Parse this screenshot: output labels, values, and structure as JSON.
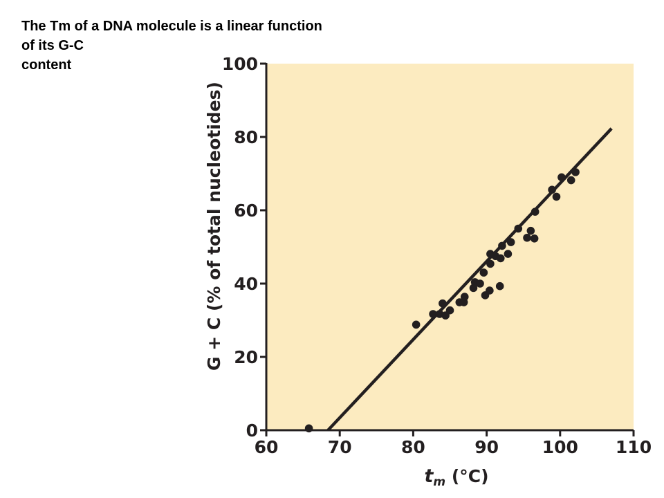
{
  "slide": {
    "title_lines": [
      "The Tm of a DNA molecule is a linear function",
      "of its G-C",
      "content"
    ]
  },
  "colors": {
    "plot_background": "#fcebc0",
    "ink": "#231f20"
  },
  "chart_data": {
    "type": "scatter",
    "title": "",
    "xlabel_main": "t",
    "xlabel_sub": "m",
    "xlabel_unit": " (°C)",
    "ylabel": "G + C (% of total nucleotides)",
    "xlim": [
      60,
      110
    ],
    "ylim": [
      0,
      100
    ],
    "x_ticks": [
      60,
      70,
      80,
      90,
      100,
      110
    ],
    "y_ticks": [
      0,
      20,
      40,
      60,
      80,
      100
    ],
    "grid": false,
    "points": [
      {
        "x": 65.8,
        "y": 0.5
      },
      {
        "x": 80.4,
        "y": 28.8
      },
      {
        "x": 82.7,
        "y": 31.7
      },
      {
        "x": 83.6,
        "y": 31.7
      },
      {
        "x": 84.0,
        "y": 34.6
      },
      {
        "x": 84.4,
        "y": 31.3
      },
      {
        "x": 85.0,
        "y": 32.7
      },
      {
        "x": 86.3,
        "y": 34.9
      },
      {
        "x": 86.9,
        "y": 34.9
      },
      {
        "x": 87.0,
        "y": 36.4
      },
      {
        "x": 88.2,
        "y": 38.8
      },
      {
        "x": 88.4,
        "y": 40.4
      },
      {
        "x": 89.1,
        "y": 40.0
      },
      {
        "x": 89.6,
        "y": 43.0
      },
      {
        "x": 89.8,
        "y": 36.8
      },
      {
        "x": 90.4,
        "y": 38.1
      },
      {
        "x": 90.5,
        "y": 45.4
      },
      {
        "x": 90.5,
        "y": 48.1
      },
      {
        "x": 91.2,
        "y": 47.5
      },
      {
        "x": 91.8,
        "y": 39.3
      },
      {
        "x": 91.9,
        "y": 46.9
      },
      {
        "x": 92.1,
        "y": 50.3
      },
      {
        "x": 92.9,
        "y": 48.1
      },
      {
        "x": 93.3,
        "y": 51.3
      },
      {
        "x": 94.3,
        "y": 55.0
      },
      {
        "x": 95.5,
        "y": 52.5
      },
      {
        "x": 96.0,
        "y": 54.4
      },
      {
        "x": 96.5,
        "y": 52.3
      },
      {
        "x": 96.6,
        "y": 59.6
      },
      {
        "x": 98.9,
        "y": 65.6
      },
      {
        "x": 99.5,
        "y": 63.7
      },
      {
        "x": 100.2,
        "y": 69.0
      },
      {
        "x": 101.5,
        "y": 68.2
      },
      {
        "x": 102.1,
        "y": 70.4
      }
    ],
    "fit_line": {
      "x": [
        68.4,
        107.0
      ],
      "y": [
        0,
        82.3
      ]
    }
  }
}
